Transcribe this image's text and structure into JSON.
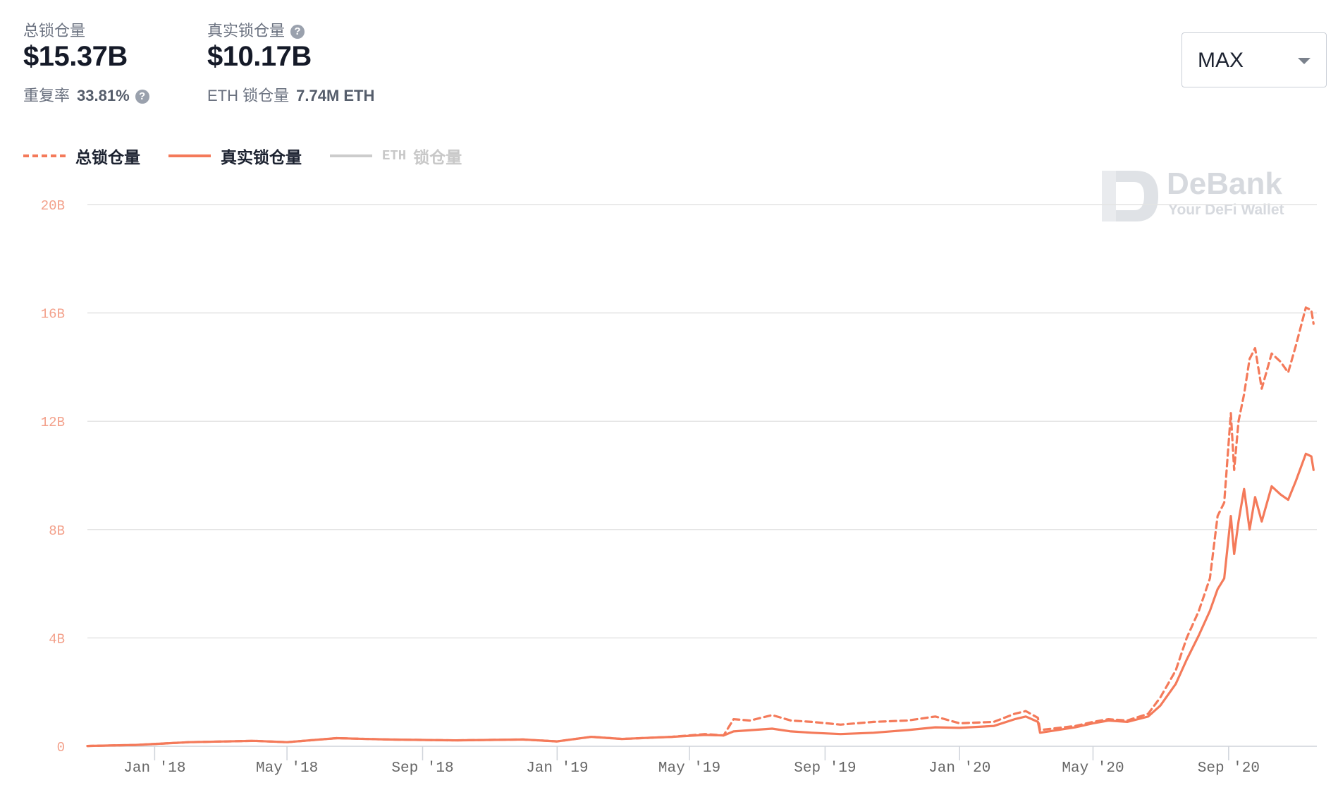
{
  "stats": {
    "total_label": "总锁仓量",
    "total_value": "$15.37B",
    "real_label": "真实锁仓量",
    "real_value": "$10.17B",
    "dup_label": "重复率",
    "dup_value": "33.81%",
    "eth_label": "ETH 锁仓量",
    "eth_value": "7.74M ETH",
    "help": "?"
  },
  "range_select": {
    "value": "MAX"
  },
  "watermark": {
    "title": "DeBank",
    "subtitle": "Your DeFi Wallet"
  },
  "colors": {
    "series": "#f47a5a",
    "grid": "#e4e4e4",
    "axis_text_y": "#f3a08a",
    "axis_text_x": "#666666",
    "legend_off": "#cccccc"
  },
  "chart_data": {
    "type": "line",
    "xlim": [
      "2017-11-01",
      "2020-11-20"
    ],
    "ylim": [
      0,
      20
    ],
    "y_unit": "B",
    "y_ticks": [
      "0",
      "4B",
      "8B",
      "12B",
      "16B",
      "20B"
    ],
    "x_ticks": [
      "Jan '18",
      "May '18",
      "Sep '18",
      "Jan '19",
      "May '19",
      "Sep '19",
      "Jan '20",
      "May '20",
      "Sep '20"
    ],
    "grid": true,
    "legend_position": "top-left",
    "series": [
      {
        "name": "总锁仓量",
        "style": "dashed",
        "points": [
          [
            "2017-11-01",
            0.01
          ],
          [
            "2017-12-15",
            0.05
          ],
          [
            "2018-02-01",
            0.15
          ],
          [
            "2018-04-01",
            0.2
          ],
          [
            "2018-05-01",
            0.15
          ],
          [
            "2018-06-15",
            0.3
          ],
          [
            "2018-08-01",
            0.25
          ],
          [
            "2018-10-01",
            0.22
          ],
          [
            "2018-12-01",
            0.25
          ],
          [
            "2019-01-01",
            0.18
          ],
          [
            "2019-02-01",
            0.35
          ],
          [
            "2019-03-01",
            0.27
          ],
          [
            "2019-04-15",
            0.35
          ],
          [
            "2019-05-15",
            0.45
          ],
          [
            "2019-06-01",
            0.4
          ],
          [
            "2019-06-10",
            1.0
          ],
          [
            "2019-06-25",
            0.95
          ],
          [
            "2019-07-15",
            1.15
          ],
          [
            "2019-08-01",
            0.95
          ],
          [
            "2019-08-20",
            0.9
          ],
          [
            "2019-09-15",
            0.8
          ],
          [
            "2019-10-15",
            0.9
          ],
          [
            "2019-11-15",
            0.95
          ],
          [
            "2019-12-10",
            1.1
          ],
          [
            "2020-01-01",
            0.85
          ],
          [
            "2020-02-01",
            0.9
          ],
          [
            "2020-02-20",
            1.2
          ],
          [
            "2020-03-01",
            1.3
          ],
          [
            "2020-03-12",
            1.05
          ],
          [
            "2020-03-14",
            0.6
          ],
          [
            "2020-04-15",
            0.75
          ],
          [
            "2020-05-01",
            0.9
          ],
          [
            "2020-05-15",
            1.0
          ],
          [
            "2020-06-01",
            0.95
          ],
          [
            "2020-06-20",
            1.2
          ],
          [
            "2020-07-01",
            1.8
          ],
          [
            "2020-07-15",
            2.8
          ],
          [
            "2020-07-25",
            4.0
          ],
          [
            "2020-08-05",
            5.0
          ],
          [
            "2020-08-15",
            6.2
          ],
          [
            "2020-08-22",
            8.5
          ],
          [
            "2020-08-28",
            9.0
          ],
          [
            "2020-09-03",
            12.3
          ],
          [
            "2020-09-06",
            10.2
          ],
          [
            "2020-09-10",
            12.0
          ],
          [
            "2020-09-15",
            13.0
          ],
          [
            "2020-09-20",
            14.3
          ],
          [
            "2020-09-25",
            14.7
          ],
          [
            "2020-10-01",
            13.2
          ],
          [
            "2020-10-10",
            14.5
          ],
          [
            "2020-10-18",
            14.2
          ],
          [
            "2020-10-25",
            13.8
          ],
          [
            "2020-11-01",
            14.8
          ],
          [
            "2020-11-10",
            16.2
          ],
          [
            "2020-11-15",
            16.1
          ],
          [
            "2020-11-17",
            15.6
          ]
        ]
      },
      {
        "name": "真实锁仓量",
        "style": "solid",
        "points": [
          [
            "2017-11-01",
            0.01
          ],
          [
            "2017-12-15",
            0.05
          ],
          [
            "2018-02-01",
            0.15
          ],
          [
            "2018-04-01",
            0.2
          ],
          [
            "2018-05-01",
            0.15
          ],
          [
            "2018-06-15",
            0.3
          ],
          [
            "2018-08-01",
            0.25
          ],
          [
            "2018-10-01",
            0.22
          ],
          [
            "2018-12-01",
            0.25
          ],
          [
            "2019-01-01",
            0.18
          ],
          [
            "2019-02-01",
            0.35
          ],
          [
            "2019-03-01",
            0.27
          ],
          [
            "2019-04-15",
            0.35
          ],
          [
            "2019-05-15",
            0.42
          ],
          [
            "2019-06-01",
            0.4
          ],
          [
            "2019-06-10",
            0.55
          ],
          [
            "2019-07-15",
            0.65
          ],
          [
            "2019-08-01",
            0.55
          ],
          [
            "2019-08-20",
            0.5
          ],
          [
            "2019-09-15",
            0.45
          ],
          [
            "2019-10-15",
            0.5
          ],
          [
            "2019-11-15",
            0.6
          ],
          [
            "2019-12-10",
            0.7
          ],
          [
            "2020-01-01",
            0.68
          ],
          [
            "2020-02-01",
            0.75
          ],
          [
            "2020-02-20",
            1.0
          ],
          [
            "2020-03-01",
            1.1
          ],
          [
            "2020-03-12",
            0.9
          ],
          [
            "2020-03-14",
            0.5
          ],
          [
            "2020-04-15",
            0.7
          ],
          [
            "2020-05-01",
            0.85
          ],
          [
            "2020-05-15",
            0.95
          ],
          [
            "2020-06-01",
            0.9
          ],
          [
            "2020-06-20",
            1.1
          ],
          [
            "2020-07-01",
            1.5
          ],
          [
            "2020-07-15",
            2.3
          ],
          [
            "2020-07-25",
            3.2
          ],
          [
            "2020-08-05",
            4.1
          ],
          [
            "2020-08-15",
            5.0
          ],
          [
            "2020-08-22",
            5.8
          ],
          [
            "2020-08-28",
            6.2
          ],
          [
            "2020-09-03",
            8.5
          ],
          [
            "2020-09-06",
            7.1
          ],
          [
            "2020-09-10",
            8.3
          ],
          [
            "2020-09-15",
            9.5
          ],
          [
            "2020-09-20",
            8.0
          ],
          [
            "2020-09-25",
            9.2
          ],
          [
            "2020-10-01",
            8.3
          ],
          [
            "2020-10-10",
            9.6
          ],
          [
            "2020-10-18",
            9.3
          ],
          [
            "2020-10-25",
            9.1
          ],
          [
            "2020-11-01",
            9.8
          ],
          [
            "2020-11-10",
            10.8
          ],
          [
            "2020-11-15",
            10.7
          ],
          [
            "2020-11-17",
            10.2
          ]
        ]
      },
      {
        "name": "ETH 锁仓量",
        "style": "solid",
        "hidden": true,
        "points": []
      }
    ]
  },
  "legend": [
    {
      "label": "总锁仓量",
      "style": "dashed",
      "enabled": true
    },
    {
      "label": "真实锁仓量",
      "style": "solid",
      "enabled": true
    },
    {
      "prefix": "ETH",
      "label": "锁仓量",
      "style": "solid",
      "enabled": false
    }
  ]
}
